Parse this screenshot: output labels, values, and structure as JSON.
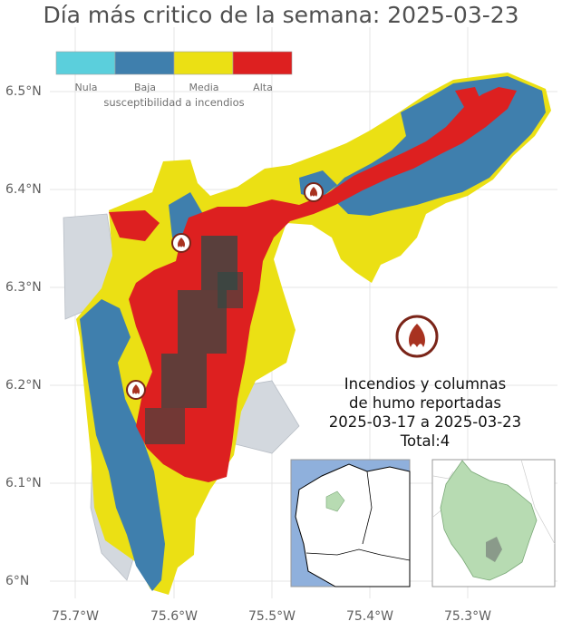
{
  "title": "Día más critico de la semana: 2025-03-23",
  "axes": {
    "y_ticks": [
      "6.5°N",
      "6.4°N",
      "6.3°N",
      "6.2°N",
      "6.1°N",
      "6°N"
    ],
    "x_ticks": [
      "75.7°W",
      "75.6°W",
      "75.5°W",
      "75.4°W",
      "75.3°W"
    ]
  },
  "legend": {
    "title": "susceptibilidad a incendios",
    "classes": [
      {
        "label": "Nula",
        "color": "#5bcfdc"
      },
      {
        "label": "Baja",
        "color": "#3f7fad"
      },
      {
        "label": "Media",
        "color": "#ebe014"
      },
      {
        "label": "Alta",
        "color": "#dd2020"
      }
    ]
  },
  "report": {
    "line1": "Incendios y columnas",
    "line2": "de humo reportadas",
    "line3": "2025-03-17 a 2025-03-23",
    "line4": "Total:4"
  },
  "fire_icon": "fire-icon",
  "colors": {
    "outside_region": "#d3d8de",
    "stress_core": "#2c4a45",
    "sea": "#8fb0dc",
    "study_area_inset": "#b7dbb2",
    "icon_ring": "#7a2418"
  }
}
